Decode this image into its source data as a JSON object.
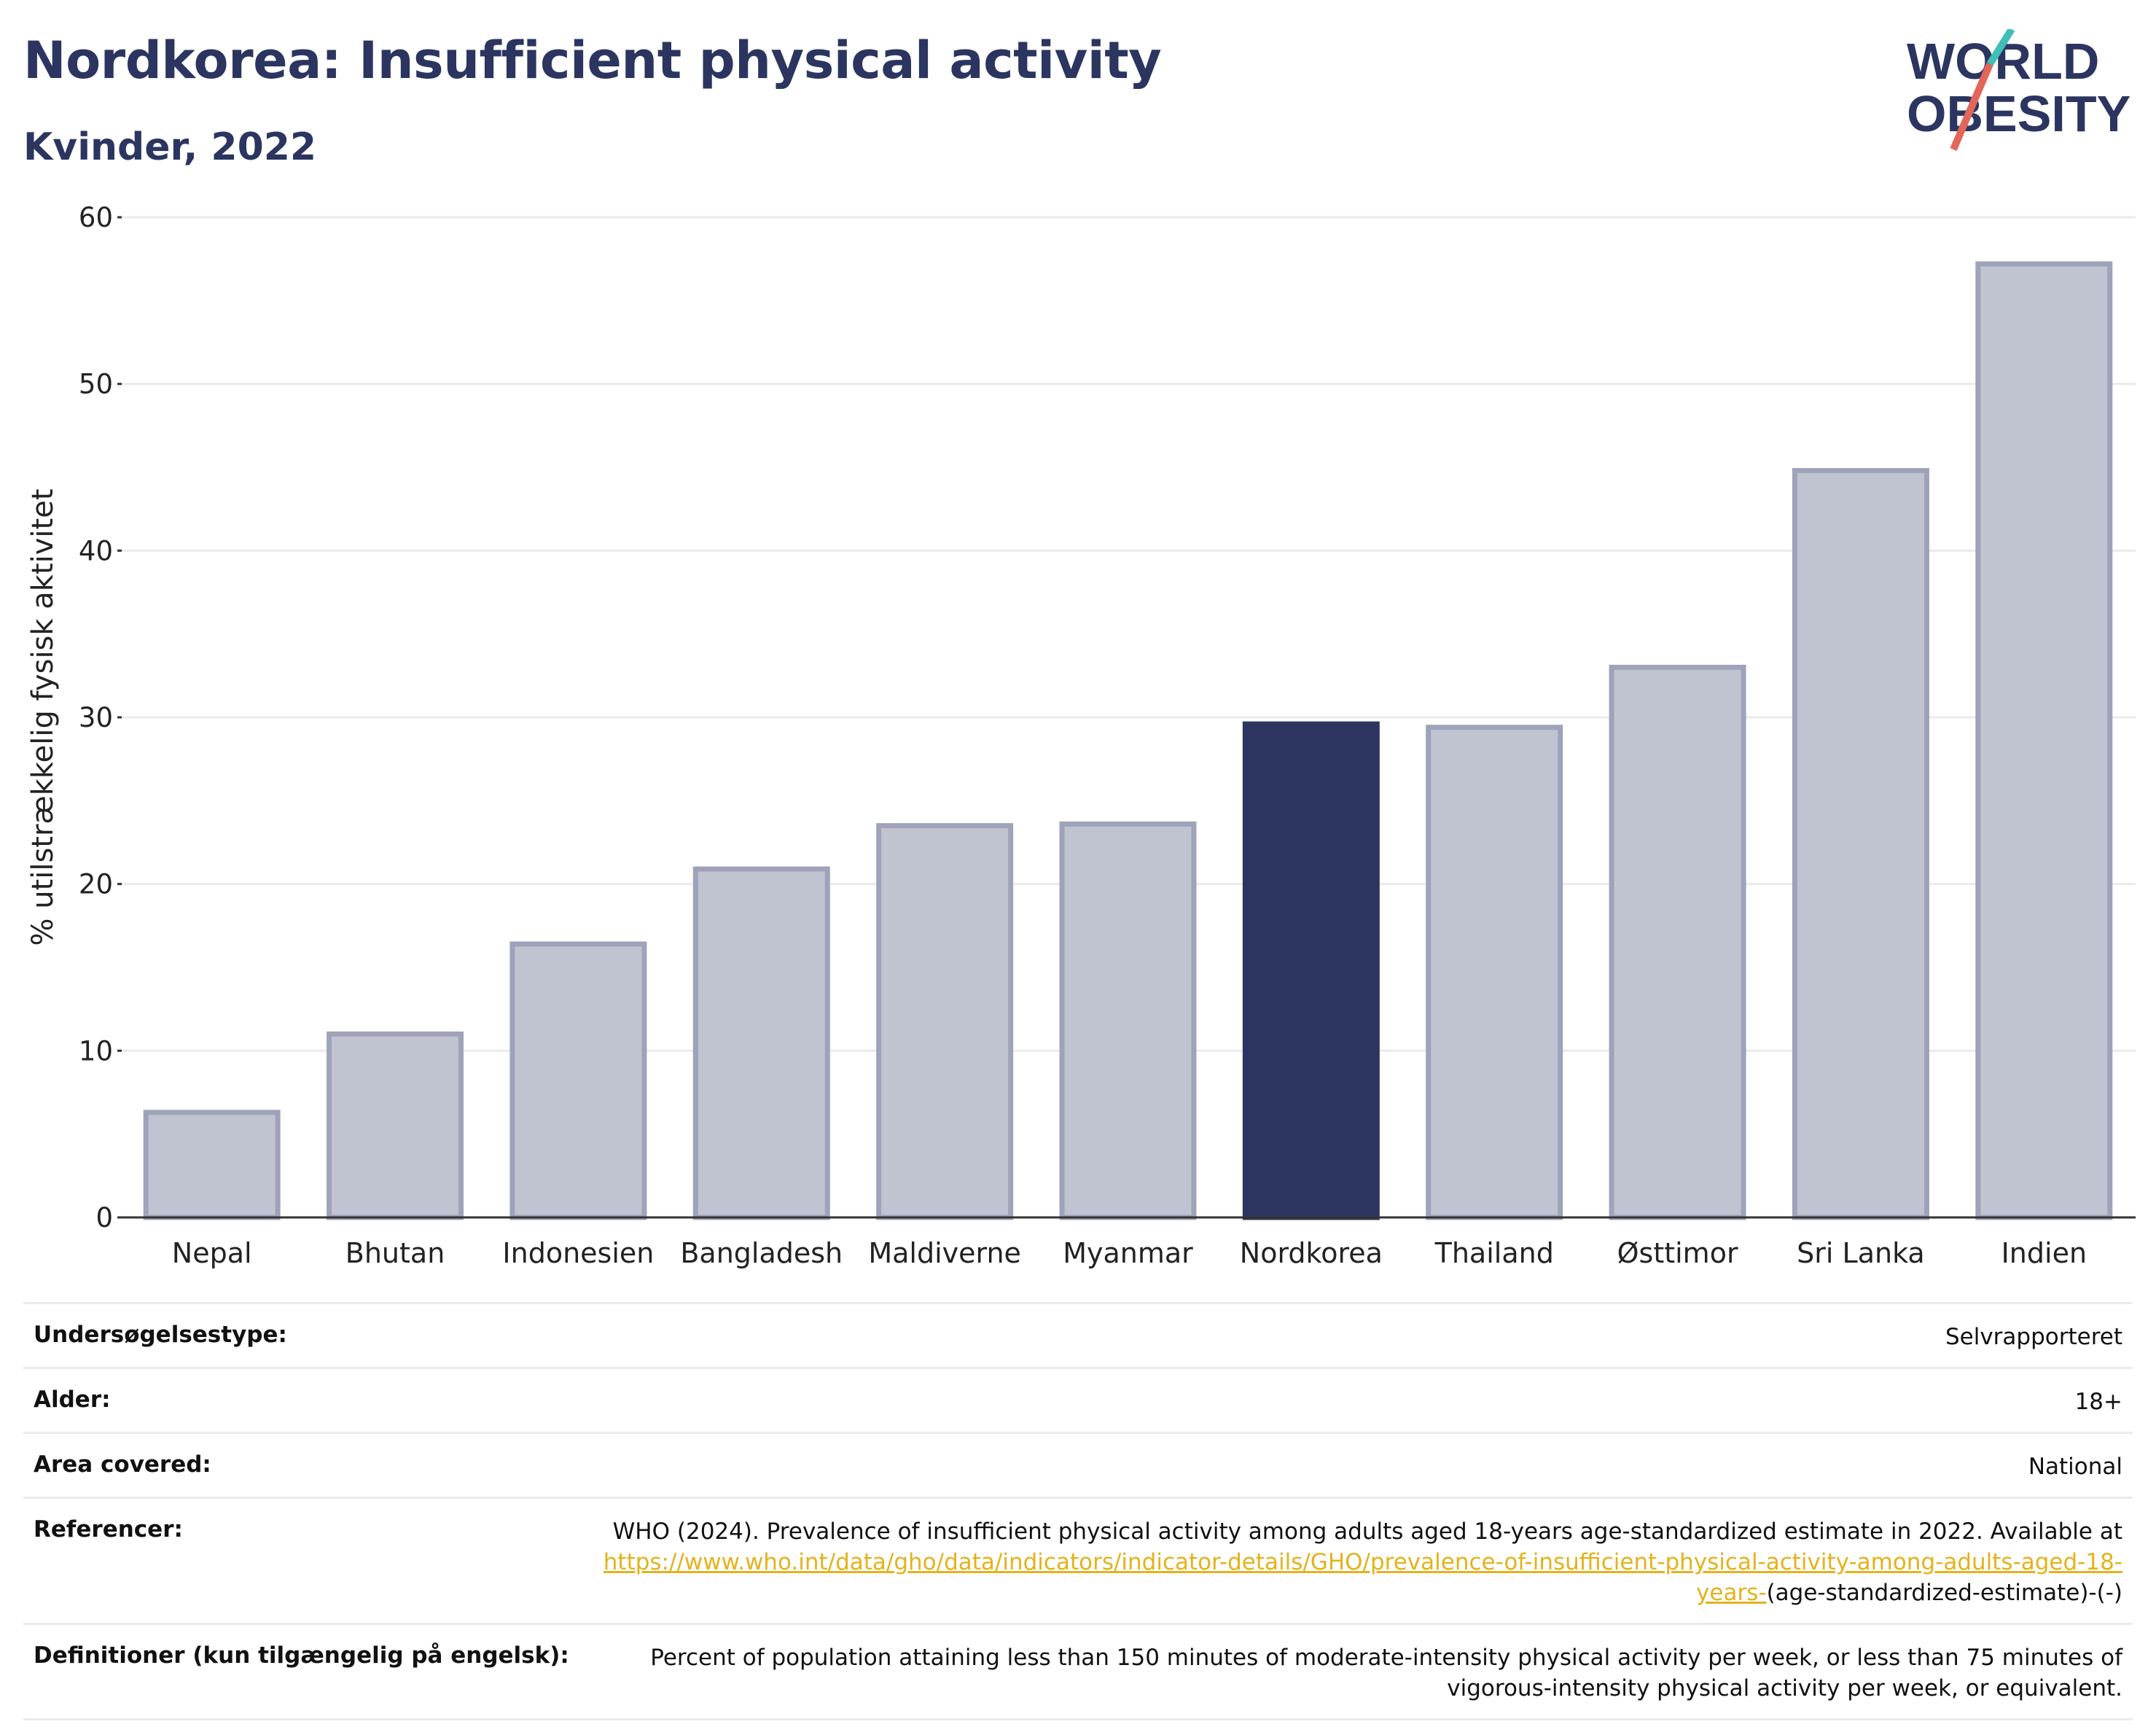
{
  "header": {
    "title": "Nordkorea: Insufficient physical activity",
    "subtitle": "Kvinder, 2022",
    "logo_line1": "WORLD",
    "logo_line2": "OBESITY"
  },
  "colors": {
    "highlight": "#2b3560",
    "bar": "#c0c3d0",
    "bar_edge": "#9ea3ba",
    "grid": "#ebebeb",
    "link": "#e4b21c"
  },
  "chart_data": {
    "type": "bar",
    "title": "Nordkorea: Insufficient physical activity",
    "subtitle": "Kvinder, 2022",
    "ylabel": "% utilstrækkelig fysisk aktivitet",
    "xlabel": "",
    "categories": [
      "Nepal",
      "Bhutan",
      "Indonesien",
      "Bangladesh",
      "Maldiverne",
      "Myanmar",
      "Nordkorea",
      "Thailand",
      "Østtimor",
      "Sri Lanka",
      "Indien"
    ],
    "values": [
      6.3,
      11.0,
      16.4,
      20.9,
      23.5,
      23.6,
      29.6,
      29.4,
      33.0,
      44.8,
      57.2
    ],
    "highlight": "Nordkorea",
    "ylim": [
      0,
      60
    ],
    "yticks": [
      0,
      10,
      20,
      30,
      40,
      50,
      60
    ],
    "grid": true
  },
  "info": {
    "rows": [
      {
        "label": "Undersøgelsestype:",
        "value": "Selvrapporteret"
      },
      {
        "label": "Alder:",
        "value": "18+"
      },
      {
        "label": "Area covered:",
        "value": "National"
      }
    ],
    "references": {
      "label": "Referencer:",
      "text": "WHO (2024). Prevalence of insufficient physical activity among adults aged 18-years age-standardized estimate in 2022. Available at",
      "link": "https://www.who.int/data/gho/data/indicators/indicator-details/GHO/prevalence-of-insufficient-physical-activity-among-adults-aged-18-years-",
      "suffix": "(age-standardized-estimate)-(-)"
    },
    "definition": {
      "label": "Definitioner (kun tilgængelig på engelsk):",
      "value": "Percent of population attaining less than 150 minutes of moderate-intensity physical activity per week, or less than 75 minutes of vigorous-intensity physical activity per week, or equivalent."
    }
  }
}
